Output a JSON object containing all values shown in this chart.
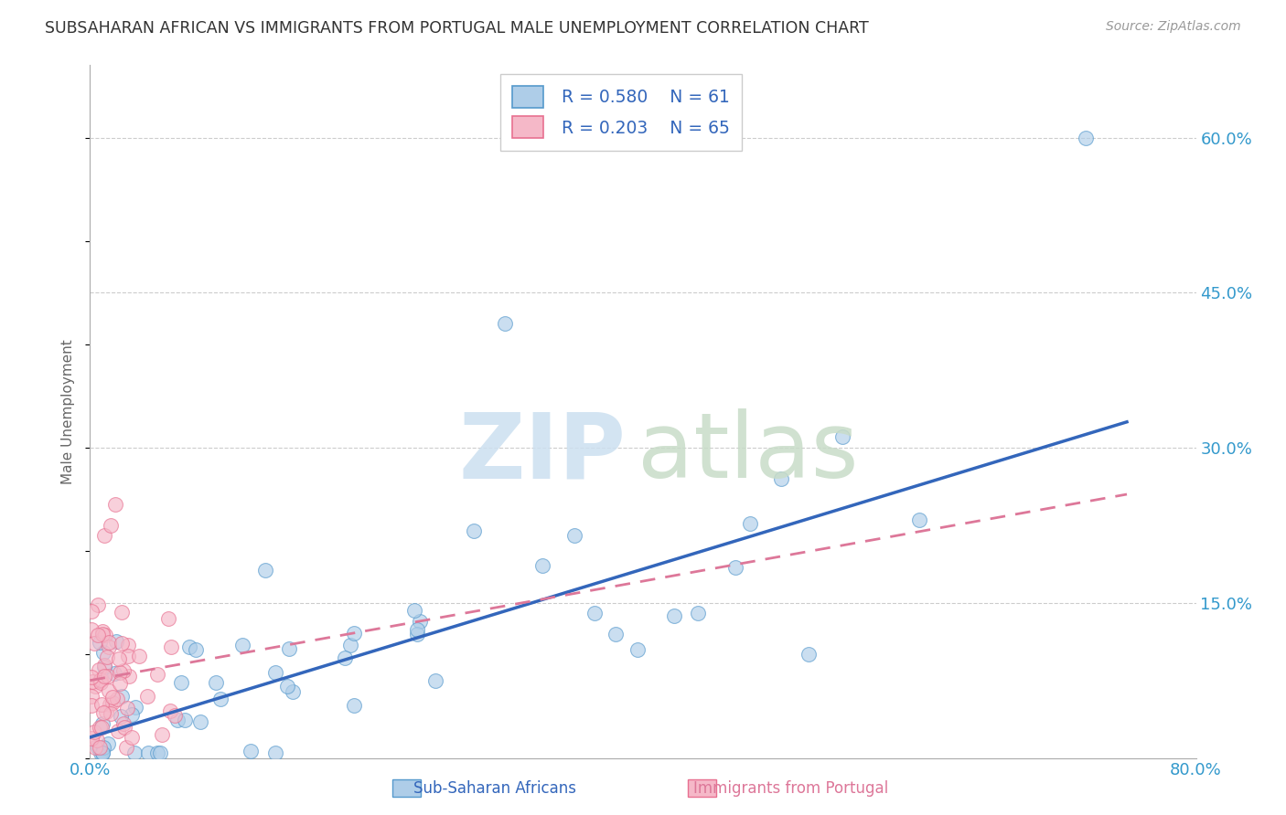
{
  "title": "SUBSAHARAN AFRICAN VS IMMIGRANTS FROM PORTUGAL MALE UNEMPLOYMENT CORRELATION CHART",
  "source": "Source: ZipAtlas.com",
  "ylabel": "Male Unemployment",
  "xlim": [
    0,
    0.8
  ],
  "ylim": [
    0,
    0.67
  ],
  "xtick_positions": [
    0.0,
    0.1,
    0.2,
    0.3,
    0.4,
    0.5,
    0.6,
    0.7,
    0.8
  ],
  "xticklabels": [
    "0.0%",
    "",
    "",
    "",
    "",
    "",
    "",
    "",
    "80.0%"
  ],
  "ytick_positions": [
    0.0,
    0.15,
    0.3,
    0.45,
    0.6
  ],
  "yticklabels_right": [
    "",
    "15.0%",
    "30.0%",
    "45.0%",
    "60.0%"
  ],
  "legend_label1": "Sub-Saharan Africans",
  "legend_label2": "Immigrants from Portugal",
  "legend_r1": "R = 0.580",
  "legend_n1": "N = 61",
  "legend_r2": "R = 0.203",
  "legend_n2": "N = 65",
  "blue_fill": "#aecde8",
  "blue_edge": "#5599cc",
  "pink_fill": "#f5b8c8",
  "pink_edge": "#e87090",
  "blue_line_color": "#3366bb",
  "pink_line_color": "#dd7799",
  "grid_color": "#cccccc",
  "watermark_zip_color": "#cce0f0",
  "watermark_atlas_color": "#c8dcc8",
  "background_color": "#ffffff",
  "blue_trend_x0": 0.0,
  "blue_trend_y0": 0.02,
  "blue_trend_x1": 0.75,
  "blue_trend_y1": 0.325,
  "pink_trend_x0": 0.0,
  "pink_trend_y0": 0.075,
  "pink_trend_x1": 0.75,
  "pink_trend_y1": 0.255
}
